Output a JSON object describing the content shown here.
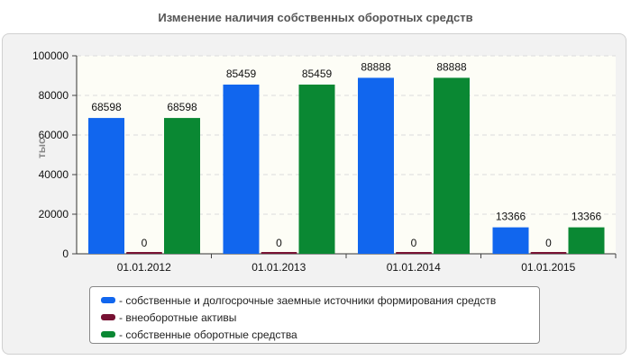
{
  "chart_data": {
    "type": "bar",
    "title": "Изменение наличия собственных оборотных средств",
    "ylabel": "тыс.",
    "xlabel": "",
    "categories": [
      "01.01.2012",
      "01.01.2013",
      "01.01.2014",
      "01.01.2015"
    ],
    "ylim": [
      0,
      100000
    ],
    "yticks": [
      0,
      20000,
      40000,
      60000,
      80000,
      100000
    ],
    "grid": true,
    "legend_position": "bottom",
    "series": [
      {
        "name": "- собственные и долгосрочные заемные источники формирования средств",
        "color": "#1166ee",
        "values": [
          68598,
          85459,
          88888,
          13366
        ],
        "labels": [
          "68598",
          "85459",
          "88888",
          "13366"
        ]
      },
      {
        "name": "- внеоборотные активы",
        "color": "#771133",
        "values": [
          0,
          0,
          0,
          0
        ],
        "labels": [
          "0",
          "0",
          "0",
          "0"
        ]
      },
      {
        "name": "- собственные оборотные средства",
        "color": "#0a8833",
        "values": [
          68598,
          85459,
          88888,
          13366
        ],
        "labels": [
          "68598",
          "85459",
          "88888",
          "13366"
        ]
      }
    ]
  }
}
